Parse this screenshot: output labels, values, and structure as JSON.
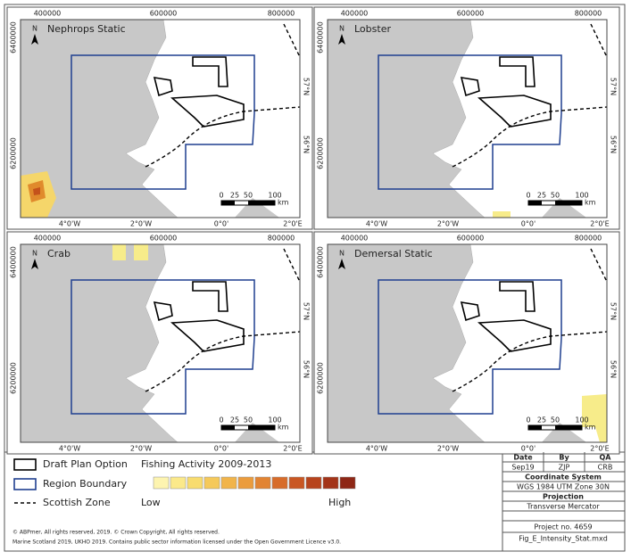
{
  "panels": [
    {
      "title": "Nephrops Static"
    },
    {
      "title": "Lobster"
    },
    {
      "title": "Crab"
    },
    {
      "title": "Demersal Static"
    }
  ],
  "axes": {
    "top": [
      "400000",
      "600000",
      "800000"
    ],
    "left": [
      "6400000",
      "6200000"
    ],
    "right": [
      "57°N",
      "56°N"
    ],
    "bottom": [
      "4°0'W",
      "2°0'W",
      "0°0'",
      "2°0'E"
    ]
  },
  "north": "N",
  "scale_bar": {
    "ticks": [
      "0",
      "25",
      "50",
      "100"
    ],
    "unit": "km"
  },
  "legend": {
    "items": [
      "Draft Plan Option",
      "Region Boundary",
      "Scottish Zone"
    ],
    "ramp_title": "Fishing Activity 2009-2013",
    "low": "Low",
    "high": "High"
  },
  "title_block": {
    "headers": [
      "Date",
      "By",
      "QA"
    ],
    "values": [
      "Sep19",
      "ZJP",
      "CRB"
    ],
    "coord_title": "Coordinate System",
    "coord": "WGS 1984 UTM Zone 30N",
    "proj_title": "Projection",
    "proj": "Transverse Mercator",
    "project": "Project no. 4659",
    "file": "Fig_E_Intensity_Stat.mxd"
  },
  "credits": [
    "© ABPmer, All rights reserved, 2019. © Crown Copyright, All rights reserved.",
    "Marine Scotland 2019, UKHO 2019. Contains public sector information licensed under the Open Government Licence v3.0."
  ]
}
